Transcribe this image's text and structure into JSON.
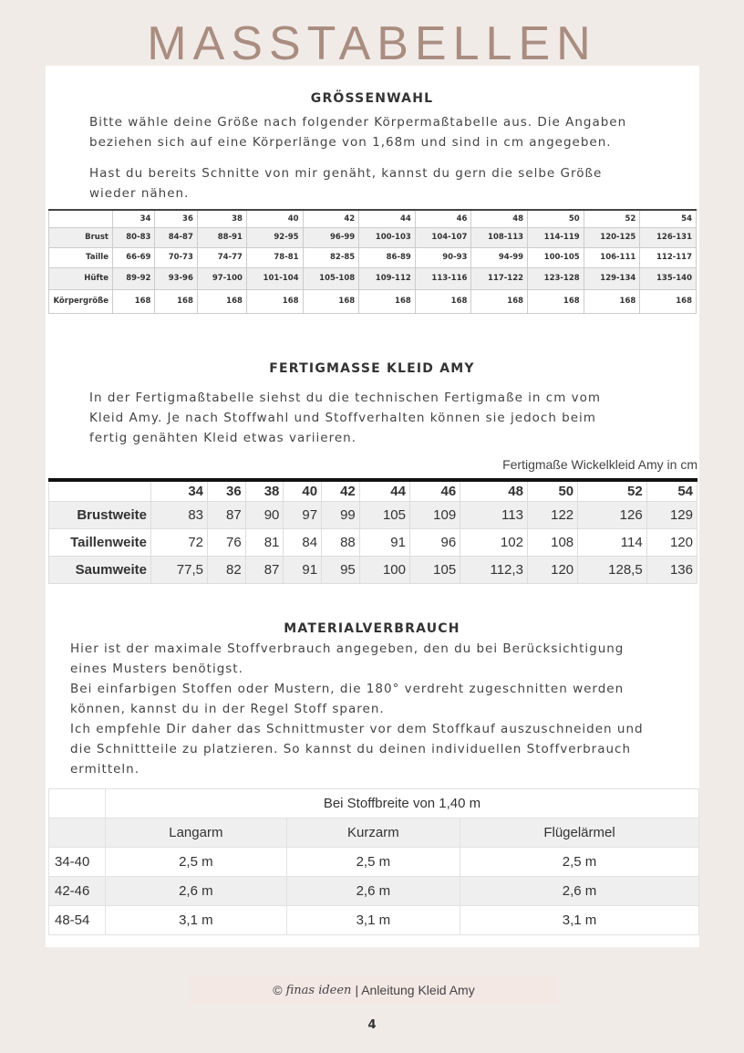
{
  "title": "MASSTABELLEN",
  "s1": {
    "heading": "GRÖSSENWAHL",
    "lines": [
      "Bitte wähle deine Größe nach folgender Körpermaßtabelle aus. Die Angaben",
      "beziehen sich auf eine Körperlänge von 1,68m und sind in cm angegeben.",
      "Hast du bereits Schnitte von mir genäht, kannst du gern die selbe Größe",
      "wieder nähen."
    ]
  },
  "t1": {
    "sizes": [
      "34",
      "36",
      "38",
      "40",
      "42",
      "44",
      "46",
      "48",
      "50",
      "52",
      "54"
    ],
    "rows": [
      {
        "label": "Brust",
        "values": [
          "80-83",
          "84-87",
          "88-91",
          "92-95",
          "96-99",
          "100-103",
          "104-107",
          "108-113",
          "114-119",
          "120-125",
          "126-131"
        ]
      },
      {
        "label": "Taille",
        "values": [
          "66-69",
          "70-73",
          "74-77",
          "78-81",
          "82-85",
          "86-89",
          "90-93",
          "94-99",
          "100-105",
          "106-111",
          "112-117"
        ]
      },
      {
        "label": "Hüfte",
        "values": [
          "89-92",
          "93-96",
          "97-100",
          "101-104",
          "105-108",
          "109-112",
          "113-116",
          "117-122",
          "123-128",
          "129-134",
          "135-140"
        ]
      },
      {
        "label": "Körpergröße",
        "values": [
          "168",
          "168",
          "168",
          "168",
          "168",
          "168",
          "168",
          "168",
          "168",
          "168",
          "168"
        ]
      }
    ]
  },
  "s2": {
    "heading": "FERTIGMASSE KLEID AMY",
    "lines": [
      "In der Fertigmaßtabelle siehst du die technischen Fertigmaße in cm vom",
      "Kleid Amy. Je nach Stoffwahl und Stoffverhalten können sie jedoch beim",
      "fertig genähten Kleid etwas variieren."
    ]
  },
  "t2": {
    "caption": "Fertigmaße Wickelkleid Amy in cm",
    "sizes": [
      "34",
      "36",
      "38",
      "40",
      "42",
      "44",
      "46",
      "48",
      "50",
      "52",
      "54"
    ],
    "rows": [
      {
        "label": "Brustweite",
        "values": [
          "83",
          "87",
          "90",
          "97",
          "99",
          "105",
          "109",
          "113",
          "122",
          "126",
          "129"
        ]
      },
      {
        "label": "Taillenweite",
        "values": [
          "72",
          "76",
          "81",
          "84",
          "88",
          "91",
          "96",
          "102",
          "108",
          "114",
          "120"
        ]
      },
      {
        "label": "Saumweite",
        "values": [
          "77,5",
          "82",
          "87",
          "91",
          "95",
          "100",
          "105",
          "112,3",
          "120",
          "128,5",
          "136"
        ]
      }
    ]
  },
  "s3": {
    "heading": "MATERIALVERBRAUCH",
    "lines": [
      "Hier ist der maximale Stoffverbrauch angegeben, den du bei Berücksichtigung",
      "eines Musters benötigst.",
      "Bei einfarbigen Stoffen oder Mustern, die 180° verdreht zugeschnitten werden",
      "können, kannst du in der Regel Stoff sparen.",
      "Ich empfehle Dir daher das Schnittmuster vor dem Stoffkauf auszuschneiden und",
      "die Schnittteile zu platzieren. So kannst du deinen individuellen Stoffverbrauch",
      "ermitteln."
    ]
  },
  "t3": {
    "header": "Bei Stoffbreite von 1,40 m",
    "cols": [
      "Langarm",
      "Kurzarm",
      "Flügelärmel"
    ],
    "rows": [
      {
        "label": "34-40",
        "values": [
          "2,5 m",
          "2,5 m",
          "2,5 m"
        ]
      },
      {
        "label": "42-46",
        "values": [
          "2,6 m",
          "2,6 m",
          "2,6 m"
        ]
      },
      {
        "label": "48-54",
        "values": [
          "3,1 m",
          "3,1 m",
          "3,1 m"
        ]
      }
    ]
  },
  "footer": {
    "copyright": "©",
    "logo": "finas ideen",
    "text": "| Anleitung Kleid Amy"
  },
  "page_number": "4"
}
